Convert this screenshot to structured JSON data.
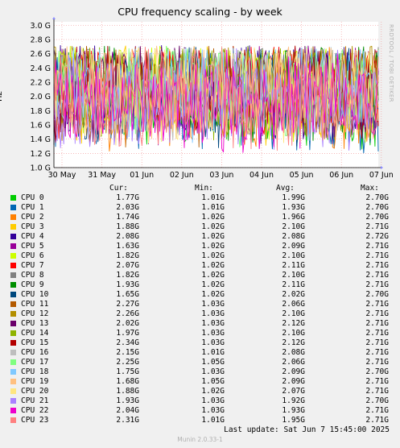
{
  "chart_data": {
    "type": "line",
    "title": "CPU frequency scaling - by week",
    "ylabel": "Hz",
    "y_ticks": [
      "1.0 G",
      "1.2 G",
      "1.4 G",
      "1.6 G",
      "1.8 G",
      "2.0 G",
      "2.2 G",
      "2.4 G",
      "2.6 G",
      "2.8 G",
      "3.0 G"
    ],
    "ylim": [
      1.0,
      3.05
    ],
    "x_ticks": [
      "30 May",
      "31 May",
      "01 Jun",
      "02 Jun",
      "03 Jun",
      "04 Jun",
      "05 Jun",
      "06 Jun",
      "07 Jun"
    ],
    "side_label": "RRDTOOL / TOBI OETIKER",
    "grid": true,
    "legend_headers": {
      "cur": "Cur:",
      "min": "Min:",
      "avg": "Avg:",
      "max": "Max:"
    },
    "series": [
      {
        "name": "CPU 0",
        "color": "#00cc00",
        "cur": "1.77G",
        "min": "1.01G",
        "avg": "1.99G",
        "max": "2.70G"
      },
      {
        "name": "CPU 1",
        "color": "#0066b3",
        "cur": "2.03G",
        "min": "1.01G",
        "avg": "1.93G",
        "max": "2.70G"
      },
      {
        "name": "CPU 2",
        "color": "#ff8000",
        "cur": "1.74G",
        "min": "1.02G",
        "avg": "1.96G",
        "max": "2.70G"
      },
      {
        "name": "CPU 3",
        "color": "#ffcc00",
        "cur": "1.88G",
        "min": "1.02G",
        "avg": "2.10G",
        "max": "2.71G"
      },
      {
        "name": "CPU 4",
        "color": "#330099",
        "cur": "2.08G",
        "min": "1.02G",
        "avg": "2.08G",
        "max": "2.72G"
      },
      {
        "name": "CPU 5",
        "color": "#990099",
        "cur": "1.63G",
        "min": "1.02G",
        "avg": "2.09G",
        "max": "2.71G"
      },
      {
        "name": "CPU 6",
        "color": "#ccff00",
        "cur": "1.82G",
        "min": "1.02G",
        "avg": "2.10G",
        "max": "2.71G"
      },
      {
        "name": "CPU 7",
        "color": "#ff0000",
        "cur": "2.07G",
        "min": "1.02G",
        "avg": "2.11G",
        "max": "2.71G"
      },
      {
        "name": "CPU 8",
        "color": "#808080",
        "cur": "1.82G",
        "min": "1.02G",
        "avg": "2.10G",
        "max": "2.71G"
      },
      {
        "name": "CPU 9",
        "color": "#008f00",
        "cur": "1.93G",
        "min": "1.02G",
        "avg": "2.11G",
        "max": "2.71G"
      },
      {
        "name": "CPU 10",
        "color": "#00487d",
        "cur": "1.65G",
        "min": "1.02G",
        "avg": "2.02G",
        "max": "2.70G"
      },
      {
        "name": "CPU 11",
        "color": "#b35a00",
        "cur": "2.27G",
        "min": "1.03G",
        "avg": "2.06G",
        "max": "2.71G"
      },
      {
        "name": "CPU 12",
        "color": "#b38f00",
        "cur": "2.26G",
        "min": "1.03G",
        "avg": "2.10G",
        "max": "2.71G"
      },
      {
        "name": "CPU 13",
        "color": "#6b006b",
        "cur": "2.02G",
        "min": "1.03G",
        "avg": "2.12G",
        "max": "2.71G"
      },
      {
        "name": "CPU 14",
        "color": "#8fb300",
        "cur": "1.97G",
        "min": "1.03G",
        "avg": "2.10G",
        "max": "2.71G"
      },
      {
        "name": "CPU 15",
        "color": "#b30000",
        "cur": "2.34G",
        "min": "1.03G",
        "avg": "2.12G",
        "max": "2.71G"
      },
      {
        "name": "CPU 16",
        "color": "#bebebe",
        "cur": "2.15G",
        "min": "1.01G",
        "avg": "2.08G",
        "max": "2.71G"
      },
      {
        "name": "CPU 17",
        "color": "#80ff80",
        "cur": "2.25G",
        "min": "1.05G",
        "avg": "2.06G",
        "max": "2.71G"
      },
      {
        "name": "CPU 18",
        "color": "#80c9ff",
        "cur": "1.75G",
        "min": "1.03G",
        "avg": "2.09G",
        "max": "2.70G"
      },
      {
        "name": "CPU 19",
        "color": "#ffc080",
        "cur": "1.68G",
        "min": "1.05G",
        "avg": "2.09G",
        "max": "2.71G"
      },
      {
        "name": "CPU 20",
        "color": "#ffe680",
        "cur": "1.88G",
        "min": "1.02G",
        "avg": "2.07G",
        "max": "2.71G"
      },
      {
        "name": "CPU 21",
        "color": "#aa80ff",
        "cur": "1.93G",
        "min": "1.03G",
        "avg": "1.92G",
        "max": "2.70G"
      },
      {
        "name": "CPU 22",
        "color": "#ee00cc",
        "cur": "2.04G",
        "min": "1.03G",
        "avg": "1.93G",
        "max": "2.71G"
      },
      {
        "name": "CPU 23",
        "color": "#ff8080",
        "cur": "2.31G",
        "min": "1.01G",
        "avg": "1.95G",
        "max": "2.71G"
      }
    ]
  },
  "footer": {
    "last_update": "Last update:  Sat Jun  7 15:45:00 2025",
    "version": "Munin 2.0.33-1"
  }
}
